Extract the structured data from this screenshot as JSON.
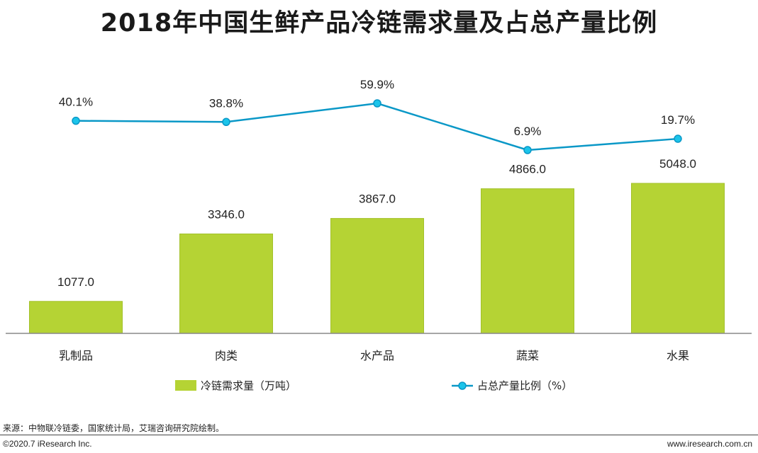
{
  "chart_data": {
    "type": "bar",
    "title": "2018年中国生鲜产品冷链需求量及占总产量比例",
    "categories": [
      "乳制品",
      "肉类",
      "水产品",
      "蔬菜",
      "水果"
    ],
    "series": [
      {
        "name": "冷链需求量（万吨）",
        "type": "bar",
        "values": [
          1077.0,
          3346.0,
          3867.0,
          4866.0,
          5048.0
        ],
        "labels": [
          "1077.0",
          "3346.0",
          "3867.0",
          "4866.0",
          "5048.0"
        ],
        "color": "#b5d334",
        "ylim": [
          0,
          5300
        ]
      },
      {
        "name": "占总产量比例（%）",
        "type": "line",
        "values": [
          40.1,
          38.8,
          59.9,
          6.9,
          19.7
        ],
        "labels": [
          "40.1%",
          "38.8%",
          "59.9%",
          "6.9%",
          "19.7%"
        ],
        "color": "#0a98c7"
      }
    ],
    "grid": false,
    "legend_position": "bottom"
  },
  "footer": {
    "source": "来源：中物联冷链委，国家统计局，艾瑞咨询研究院绘制。",
    "copyright": "©2020.7 iResearch Inc.",
    "website": "www.iresearch.com.cn"
  }
}
